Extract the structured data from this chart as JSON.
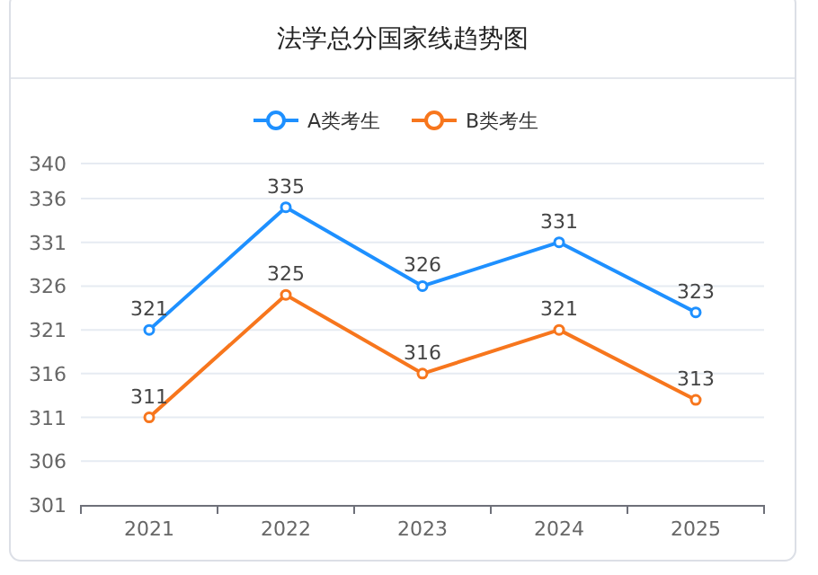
{
  "chart_data": {
    "type": "line",
    "title": "法学总分国家线趋势图",
    "categories": [
      "2021",
      "2022",
      "2023",
      "2024",
      "2025"
    ],
    "series": [
      {
        "name": "A类考生",
        "color": "#1e90ff",
        "values": [
          321,
          335,
          326,
          331,
          323
        ]
      },
      {
        "name": "B类考生",
        "color": "#f7761d",
        "values": [
          311,
          325,
          316,
          321,
          313
        ]
      }
    ],
    "ylim": [
      301,
      340
    ],
    "yticks": [
      301,
      306,
      311,
      316,
      321,
      326,
      331,
      336,
      340
    ],
    "grid": "y",
    "legend": "top",
    "marker": "circle",
    "line_style": "solid",
    "data_labels": true
  }
}
